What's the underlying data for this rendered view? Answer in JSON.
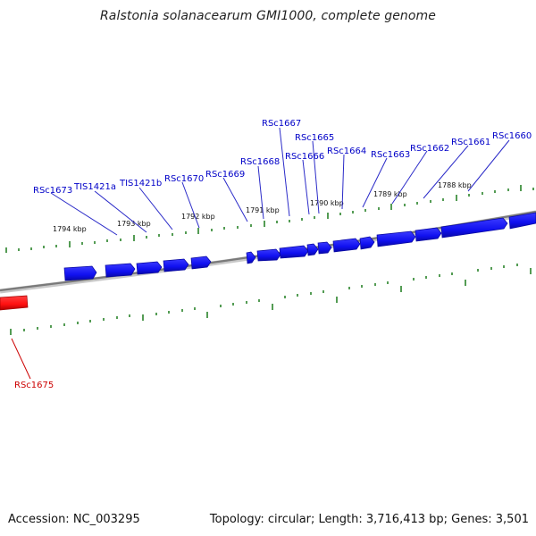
{
  "title": "Ralstonia solanacearum GMI1000, complete genome",
  "footer": {
    "accession": "Accession: NC_003295",
    "summary": "Topology: circular; Length: 3,716,413 bp; Genes: 3,501"
  },
  "colors": {
    "forward_gene": "#1010f0",
    "reverse_gene": "#ff1010",
    "forward_label": "#0000c8",
    "reverse_label": "#cc0000",
    "backbone": "#808080",
    "ticks": "#1a7a1a",
    "leader": "#2a2ac8"
  },
  "scale_labels": [
    "1794 kbp",
    "1793 kbp",
    "1792 kbp",
    "1791 kbp",
    "1790 kbp",
    "1789 kbp",
    "1788 kbp"
  ],
  "genes": [
    {
      "name": "RSc1673",
      "strand": "forward"
    },
    {
      "name": "TIS1421a",
      "strand": "forward"
    },
    {
      "name": "TIS1421b",
      "strand": "forward"
    },
    {
      "name": "RSc1670",
      "strand": "forward"
    },
    {
      "name": "RSc1669",
      "strand": "forward"
    },
    {
      "name": "RSc1668",
      "strand": "forward"
    },
    {
      "name": "RSc1667",
      "strand": "forward"
    },
    {
      "name": "RSc1666",
      "strand": "forward"
    },
    {
      "name": "RSc1665",
      "strand": "forward"
    },
    {
      "name": "RSc1664",
      "strand": "forward"
    },
    {
      "name": "RSc1663",
      "strand": "forward"
    },
    {
      "name": "RSc1662",
      "strand": "forward"
    },
    {
      "name": "RSc1661",
      "strand": "forward"
    },
    {
      "name": "RSc1660",
      "strand": "forward"
    },
    {
      "name": "RSc1675",
      "strand": "reverse"
    }
  ]
}
